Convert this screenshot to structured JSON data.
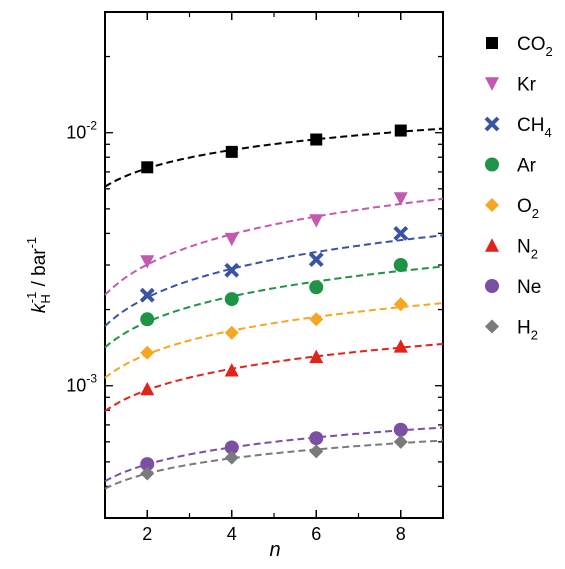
{
  "chart_data": {
    "type": "scatter",
    "xlabel": "n",
    "ylabel": {
      "base": "k",
      "base_sub": "H",
      "base_sup": "-1",
      "sep": " / bar",
      "unit_sup": "-1"
    },
    "xlim": [
      1,
      9
    ],
    "ylim": [
      0.0003,
      0.03
    ],
    "yscale": "log",
    "xticks": [
      2,
      4,
      6,
      8
    ],
    "ytick_labels": [
      {
        "value": 0.001,
        "base": "10",
        "exp": "-3"
      },
      {
        "value": 0.01,
        "base": "10",
        "exp": "-2"
      }
    ],
    "legend_position": "right",
    "series": [
      {
        "name": "CO",
        "sub": "2",
        "marker": "square",
        "color": "#000000",
        "x": [
          2,
          4,
          6,
          8
        ],
        "y": [
          0.0073,
          0.0084,
          0.0094,
          0.0102
        ],
        "fit": {
          "a": 8.25e-05,
          "b": 0.0018
        }
      },
      {
        "name": "Kr",
        "sub": "",
        "marker": "triangle-down",
        "color": "#c459b0",
        "x": [
          2,
          4,
          6,
          8
        ],
        "y": [
          0.0031,
          0.0038,
          0.0045,
          0.0055
        ],
        "fit": {
          "a": 8.75e-05,
          "b": 0.0018
        }
      },
      {
        "name": "CH",
        "sub": "4",
        "marker": "x",
        "color": "#3a54a5",
        "x": [
          2,
          4,
          6,
          8
        ],
        "y": [
          0.00228,
          0.00286,
          0.00315,
          0.004
        ],
        "fit": {
          "a": 7e-05,
          "b": 0.0018
        }
      },
      {
        "name": "Ar",
        "sub": "",
        "marker": "circle",
        "color": "#1f9347",
        "x": [
          2,
          4,
          6,
          8
        ],
        "y": [
          0.00183,
          0.0022,
          0.00245,
          0.003
        ],
        "fit": {
          "a": 5.65e-05,
          "b": 0.0018
        }
      },
      {
        "name": "O",
        "sub": "2",
        "marker": "diamond",
        "color": "#f5a623",
        "x": [
          2,
          4,
          6,
          8
        ],
        "y": [
          0.00135,
          0.00162,
          0.00183,
          0.0021
        ],
        "fit": {
          "a": 4.5e-05,
          "b": 0.0018
        }
      },
      {
        "name": "N",
        "sub": "2",
        "marker": "triangle-up",
        "color": "#e2231a",
        "x": [
          2,
          4,
          6,
          8
        ],
        "y": [
          0.00097,
          0.00115,
          0.0013,
          0.00143
        ],
        "fit": {
          "a": 3.3e-05,
          "b": 0.0018
        }
      },
      {
        "name": "Ne",
        "sub": "",
        "marker": "circle",
        "color": "#7b4fa3",
        "x": [
          2,
          4,
          6,
          8
        ],
        "y": [
          0.00049,
          0.00057,
          0.00062,
          0.00067
        ],
        "fit": {
          "a": 1.58e-05,
          "b": 0.0018
        }
      },
      {
        "name": "H",
        "sub": "2",
        "marker": "diamond",
        "color": "#7a7a7a",
        "x": [
          2,
          4,
          6,
          8
        ],
        "y": [
          0.00045,
          0.00052,
          0.00055,
          0.0006
        ],
        "fit": {
          "a": 1.45e-05,
          "b": 0.0018
        }
      }
    ]
  }
}
